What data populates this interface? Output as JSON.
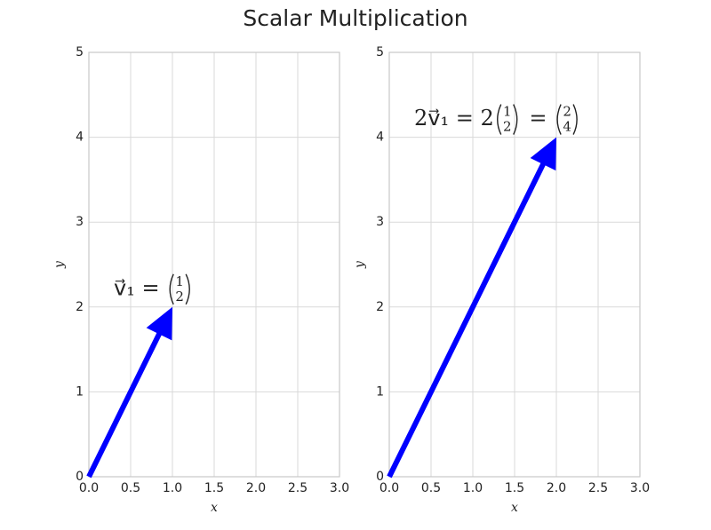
{
  "title": "Scalar Multiplication",
  "chart_data": [
    {
      "type": "vector",
      "xlabel": "x",
      "ylabel": "y",
      "color": "#0000ff",
      "grid": true,
      "origin": [
        0,
        0
      ],
      "vector": [
        1,
        2
      ],
      "annotation": [
        {
          "text": "v⃗₁ = "
        },
        {
          "column": [
            "1",
            "2"
          ]
        }
      ],
      "xlim": [
        0,
        3
      ],
      "ylim": [
        0,
        5
      ],
      "xticks": [
        {
          "value": 0,
          "label": "0.0"
        },
        0.5,
        {
          "value": 1,
          "label": "1.0"
        },
        1.5,
        {
          "value": 2,
          "label": "2.0"
        },
        2.5,
        {
          "value": 3,
          "label": "3.0"
        }
      ],
      "yticks": [
        0,
        1,
        2,
        3,
        4,
        5
      ]
    },
    {
      "type": "vector",
      "xlabel": "x",
      "ylabel": "y",
      "color": "#0000ff",
      "grid": true,
      "origin": [
        0,
        0
      ],
      "vector": [
        2,
        4
      ],
      "annotation": [
        {
          "text": "2v⃗₁ = 2"
        },
        {
          "column": [
            "1",
            "2"
          ]
        },
        {
          "text": " = "
        },
        {
          "column": [
            "2",
            "4"
          ]
        }
      ],
      "xlim": [
        0,
        3
      ],
      "ylim": [
        0,
        5
      ],
      "xticks": [
        {
          "value": 0,
          "label": "0.0"
        },
        0.5,
        {
          "value": 1,
          "label": "1.0"
        },
        1.5,
        {
          "value": 2,
          "label": "2.0"
        },
        2.5,
        {
          "value": 3,
          "label": "3.0"
        }
      ],
      "yticks": [
        0,
        1,
        2,
        3,
        4,
        5
      ]
    }
  ]
}
